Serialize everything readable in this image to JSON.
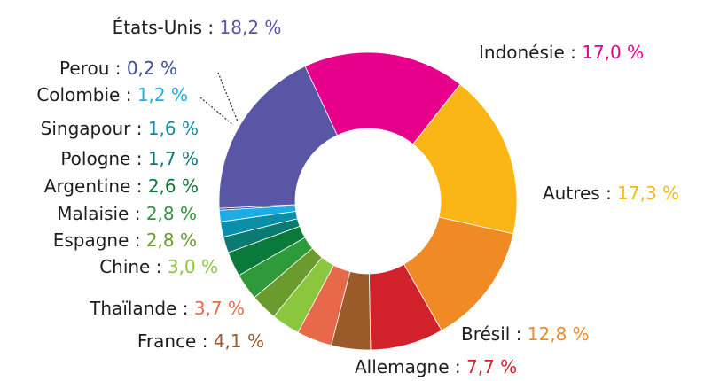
{
  "chart_data": {
    "type": "pie",
    "donut": true,
    "separator": " : ",
    "categories": [
      "Indonésie",
      "Autres",
      "Brésil",
      "Allemagne",
      "France",
      "Thaïlande",
      "Chine",
      "Espagne",
      "Malaisie",
      "Argentine",
      "Pologne",
      "Singapour",
      "Colombie",
      "Perou",
      "États-Unis"
    ],
    "values": [
      17.0,
      17.3,
      12.8,
      7.7,
      4.1,
      3.7,
      3.0,
      2.8,
      2.8,
      2.6,
      1.7,
      1.6,
      1.2,
      0.2,
      18.2
    ],
    "value_labels": [
      "17,0 %",
      "17,3 %",
      "12,8 %",
      "7,7 %",
      "4,1 %",
      "3,7 %",
      "3,0 %",
      "2,8 %",
      "2,8 %",
      "2,6 %",
      "1,7 %",
      "1,6 %",
      "1,2 %",
      "0,2 %",
      "18,2 %"
    ],
    "colors": [
      "#e6008c",
      "#f9b616",
      "#f08a24",
      "#d1222b",
      "#9b5a2a",
      "#e8684a",
      "#8cc63f",
      "#6b9a2d",
      "#2e9a3a",
      "#0a7a3a",
      "#0a7a72",
      "#0a8fa8",
      "#1aaee8",
      "#3b4c9a",
      "#5a56a6"
    ]
  }
}
